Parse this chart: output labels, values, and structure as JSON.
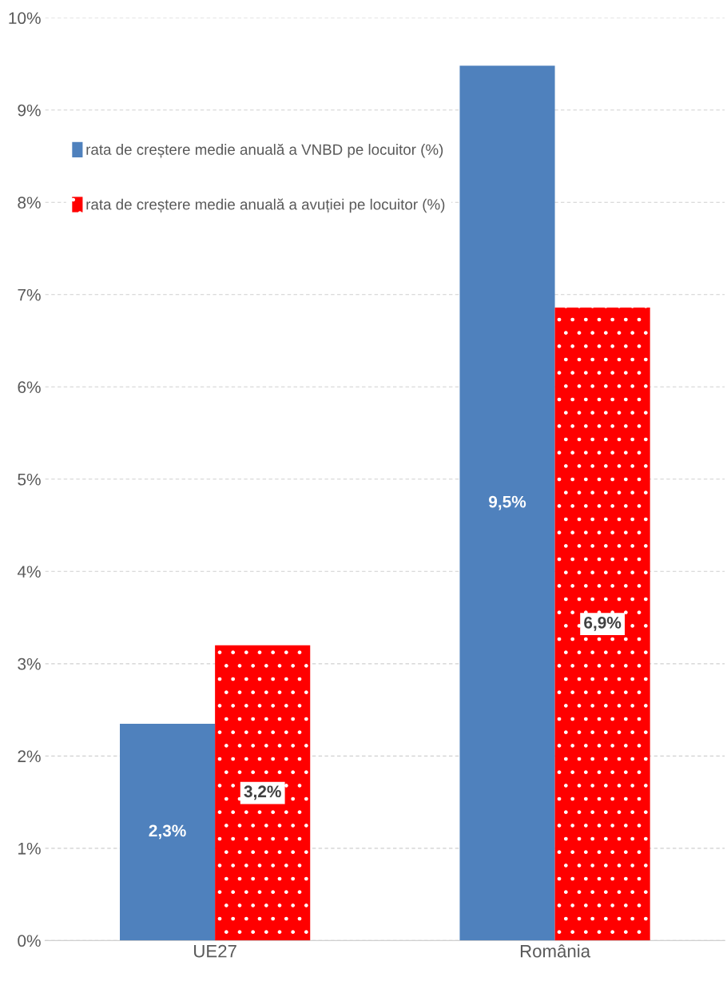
{
  "chart_data": {
    "type": "bar",
    "categories": [
      "UE27",
      "România"
    ],
    "series": [
      {
        "name": "rata de creștere medie anuală a VNBD pe locuitor (%)",
        "color": "#4f81bd",
        "values": [
          2.35,
          9.48
        ],
        "value_labels": [
          "2,3%",
          "9,5%"
        ]
      },
      {
        "name": "rata de creștere medie anuală a avuției pe locuitor (%)",
        "color": "#ff0000",
        "values": [
          3.2,
          6.86
        ],
        "value_labels": [
          "3,2%",
          "6,9%"
        ]
      }
    ],
    "ylim": [
      0,
      10
    ],
    "yticks": [
      {
        "value": 0,
        "label": "0%"
      },
      {
        "value": 1,
        "label": "1%"
      },
      {
        "value": 2,
        "label": "2%"
      },
      {
        "value": 3,
        "label": "3%"
      },
      {
        "value": 4,
        "label": "4%"
      },
      {
        "value": 5,
        "label": "5%"
      },
      {
        "value": 6,
        "label": "6%"
      },
      {
        "value": 7,
        "label": "7%"
      },
      {
        "value": 8,
        "label": "8%"
      },
      {
        "value": 9,
        "label": "9%"
      },
      {
        "value": 10,
        "label": "10%"
      }
    ],
    "grid": "y",
    "legend": "top left"
  }
}
